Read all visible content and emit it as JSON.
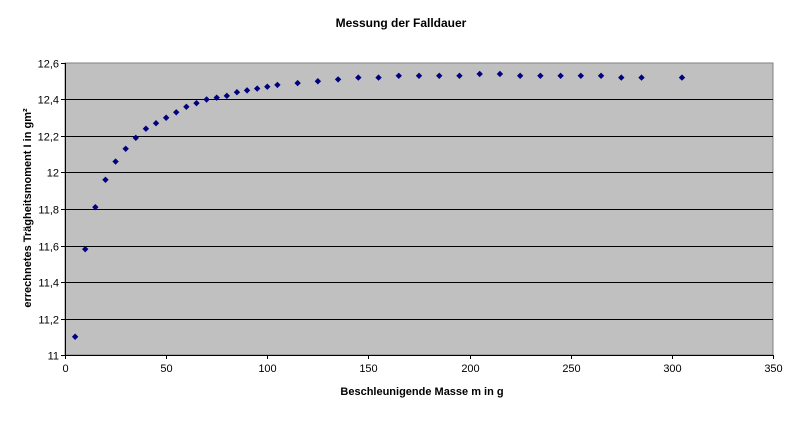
{
  "chart_data": {
    "type": "scatter",
    "title": "Messung der Falldauer",
    "xlabel": "Beschleunigende Masse m in g",
    "ylabel": "errechnetes Trägheitsmoment I in gm²",
    "xlim": [
      0,
      350
    ],
    "ylim": [
      11,
      12.6
    ],
    "x_ticks": [
      "0",
      "50",
      "100",
      "150",
      "200",
      "250",
      "300",
      "350"
    ],
    "y_ticks": [
      "11",
      "11,2",
      "11,4",
      "11,6",
      "11,8",
      "12",
      "12,2",
      "12,4",
      "12,6"
    ],
    "grid": "horizontal",
    "plot_background": "#c0c0c0",
    "marker_color": "#000080",
    "marker": "diamond",
    "series": [
      {
        "points": [
          [
            5,
            11.1
          ],
          [
            10,
            11.58
          ],
          [
            15,
            11.81
          ],
          [
            20,
            11.96
          ],
          [
            25,
            12.06
          ],
          [
            30,
            12.13
          ],
          [
            35,
            12.19
          ],
          [
            40,
            12.24
          ],
          [
            45,
            12.27
          ],
          [
            50,
            12.3
          ],
          [
            55,
            12.33
          ],
          [
            60,
            12.36
          ],
          [
            65,
            12.38
          ],
          [
            70,
            12.4
          ],
          [
            75,
            12.41
          ],
          [
            80,
            12.42
          ],
          [
            85,
            12.44
          ],
          [
            90,
            12.45
          ],
          [
            95,
            12.46
          ],
          [
            100,
            12.47
          ],
          [
            105,
            12.48
          ],
          [
            115,
            12.49
          ],
          [
            125,
            12.5
          ],
          [
            135,
            12.51
          ],
          [
            145,
            12.52
          ],
          [
            155,
            12.52
          ],
          [
            165,
            12.53
          ],
          [
            175,
            12.53
          ],
          [
            185,
            12.53
          ],
          [
            195,
            12.53
          ],
          [
            205,
            12.54
          ],
          [
            215,
            12.54
          ],
          [
            225,
            12.53
          ],
          [
            235,
            12.53
          ],
          [
            245,
            12.53
          ],
          [
            255,
            12.53
          ],
          [
            265,
            12.53
          ],
          [
            275,
            12.52
          ],
          [
            285,
            12.52
          ],
          [
            305,
            12.52
          ]
        ]
      }
    ]
  }
}
